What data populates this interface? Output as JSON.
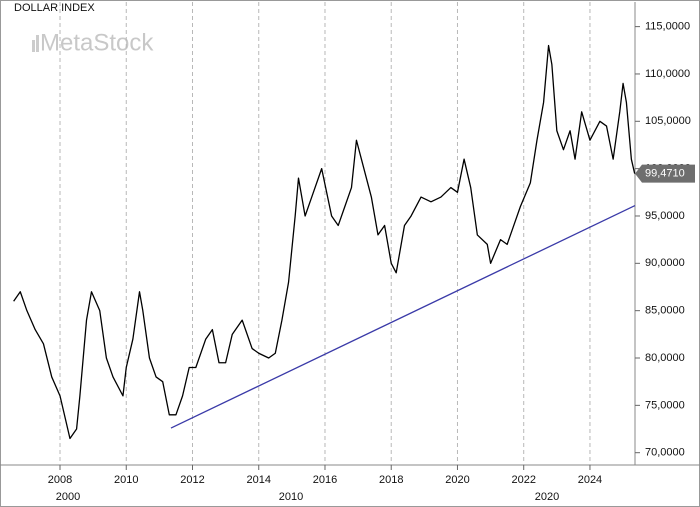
{
  "chart_data": {
    "type": "line",
    "title": "DOLLAR INDEX",
    "watermark": "MetaStock",
    "series": [
      {
        "name": "DOLLAR INDEX",
        "color": "#000000",
        "x": [
          2006.6,
          2006.8,
          2007.0,
          2007.25,
          2007.5,
          2007.75,
          2008.0,
          2008.2,
          2008.3,
          2008.5,
          2008.6,
          2008.8,
          2008.95,
          2009.2,
          2009.4,
          2009.6,
          2009.9,
          2010.0,
          2010.2,
          2010.4,
          2010.5,
          2010.7,
          2010.9,
          2011.1,
          2011.3,
          2011.5,
          2011.7,
          2011.9,
          2012.1,
          2012.4,
          2012.6,
          2012.8,
          2013.0,
          2013.2,
          2013.5,
          2013.8,
          2014.0,
          2014.3,
          2014.5,
          2014.7,
          2014.9,
          2015.1,
          2015.2,
          2015.4,
          2015.6,
          2015.9,
          2016.2,
          2016.4,
          2016.6,
          2016.8,
          2016.95,
          2017.1,
          2017.4,
          2017.6,
          2017.8,
          2018.0,
          2018.15,
          2018.4,
          2018.6,
          2018.9,
          2019.2,
          2019.5,
          2019.8,
          2020.0,
          2020.2,
          2020.4,
          2020.6,
          2020.9,
          2021.0,
          2021.3,
          2021.5,
          2021.7,
          2021.9,
          2022.2,
          2022.4,
          2022.6,
          2022.75,
          2022.85,
          2023.0,
          2023.2,
          2023.4,
          2023.55,
          2023.75,
          2024.0,
          2024.3,
          2024.5,
          2024.7,
          2024.9,
          2025.0,
          2025.1,
          2025.25,
          2025.35
        ],
        "values": [
          86,
          87,
          85,
          83,
          81.5,
          78,
          76,
          73,
          71.5,
          72.5,
          76,
          84,
          87,
          85,
          80,
          78,
          76,
          79,
          82,
          87,
          85,
          80,
          78,
          77.5,
          74,
          74,
          76,
          79,
          79,
          82,
          83,
          79.5,
          79.5,
          82.5,
          84,
          81,
          80.5,
          80,
          80.5,
          84,
          88,
          95,
          99,
          95,
          97,
          100,
          95,
          94,
          96,
          98,
          103,
          101,
          97,
          93,
          94,
          90,
          89,
          94,
          95,
          97,
          96.5,
          97,
          98,
          97.5,
          101,
          98,
          93,
          92,
          90,
          92.5,
          92,
          94,
          96,
          98.5,
          103,
          107,
          113,
          111,
          104,
          102,
          104,
          101,
          106,
          103,
          105,
          104.5,
          101,
          106,
          109,
          107,
          101,
          99.471
        ]
      }
    ],
    "trendline": {
      "color": "#3a3aa8",
      "x": [
        2011.35,
        2025.36
      ],
      "y": [
        72.6,
        96.1
      ]
    },
    "last_price": {
      "value": 99.471,
      "label": "99,4710"
    },
    "xlim": [
      2006.49,
      2025.36
    ],
    "ylim": [
      68.7,
      117.6
    ],
    "xticks": [
      2008,
      2010,
      2012,
      2014,
      2016,
      2018,
      2020,
      2022,
      2024
    ],
    "x_groups": [
      "2000",
      "2010",
      "2020"
    ],
    "yticks": [
      {
        "value": 70,
        "label": "70,0000"
      },
      {
        "value": 75,
        "label": "75,0000"
      },
      {
        "value": 80,
        "label": "80,0000"
      },
      {
        "value": 85,
        "label": "85,0000"
      },
      {
        "value": 90,
        "label": "90,0000"
      },
      {
        "value": 95,
        "label": "95,0000"
      },
      {
        "value": 100,
        "label": "100,0000"
      },
      {
        "value": 105,
        "label": "105,0000"
      },
      {
        "value": 110,
        "label": "110,0000"
      },
      {
        "value": 115,
        "label": "115,0000"
      }
    ],
    "grid": true
  }
}
